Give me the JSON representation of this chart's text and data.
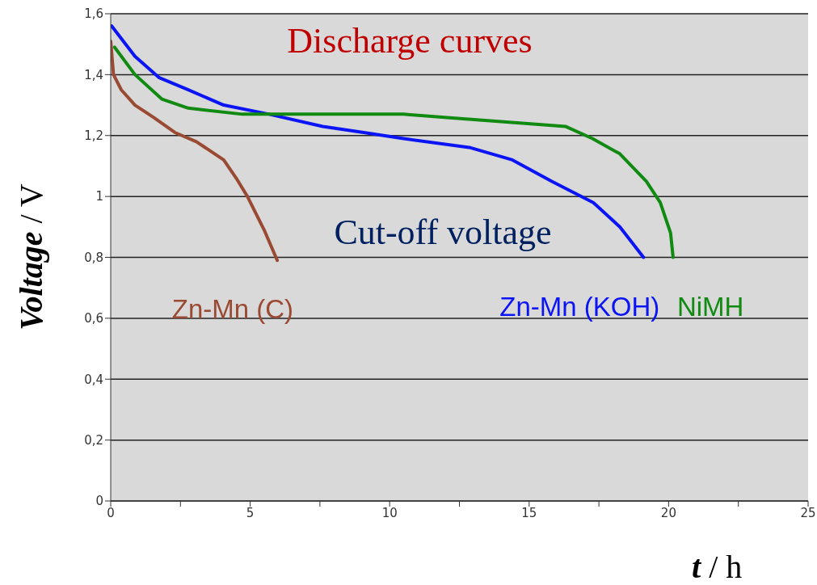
{
  "chart_data": {
    "type": "line",
    "title": "Discharge curves",
    "annotations": [
      "Cut-off voltage"
    ],
    "xlabel": "t / h",
    "ylabel": "Voltage / V",
    "xlim": [
      0,
      25
    ],
    "ylim": [
      0,
      1.6
    ],
    "xticks": [
      0,
      {
        "value": 2.5,
        "label": null
      },
      5,
      {
        "value": 7.5,
        "label": null
      },
      10,
      {
        "value": 12.5,
        "label": null
      },
      15,
      {
        "value": 17.5,
        "label": null
      },
      20,
      {
        "value": 22.5,
        "label": null
      },
      25
    ],
    "yticks": [
      0,
      {
        "value": 0.2,
        "label": "0,2"
      },
      {
        "value": 0.4,
        "label": "0,4"
      },
      {
        "value": 0.6,
        "label": "0,6"
      },
      {
        "value": 0.8,
        "label": "0,8"
      },
      1,
      {
        "value": 1.2,
        "label": "1,2"
      },
      {
        "value": 1.4,
        "label": "1,4"
      },
      {
        "value": 1.6,
        "label": "1,6"
      }
    ],
    "grid": "y",
    "legend": false,
    "marker": "none",
    "line_style": "solid",
    "series": [
      {
        "name": "Zn-Mn (C)",
        "color": "#9a4a32",
        "x": [
          0,
          0.1,
          0.38,
          0.87,
          1.53,
          2.3,
          3.07,
          4.05,
          4.5,
          4.9,
          5.5,
          5.97
        ],
        "values": [
          1.51,
          1.4,
          1.35,
          1.3,
          1.26,
          1.21,
          1.18,
          1.12,
          1.06,
          1.0,
          0.89,
          0.79
        ]
      },
      {
        "name": "Zn-Mn (KOH)",
        "color": "#0a14f5",
        "x": [
          0.03,
          0.87,
          1.74,
          2.78,
          4.05,
          5.68,
          7.6,
          9.07,
          10.5,
          12.9,
          14.4,
          15.8,
          17.3,
          18.25,
          19.1
        ],
        "values": [
          1.56,
          1.46,
          1.39,
          1.35,
          1.3,
          1.27,
          1.23,
          1.21,
          1.19,
          1.16,
          1.12,
          1.05,
          0.98,
          0.9,
          0.8
        ]
      },
      {
        "name": "NiMH",
        "color": "#118a12",
        "x": [
          0.14,
          0.87,
          1.83,
          2.78,
          4.72,
          7.6,
          10.5,
          11.96,
          14.86,
          16.3,
          17.27,
          18.25,
          19.2,
          19.7,
          20.07,
          20.16
        ],
        "values": [
          1.49,
          1.4,
          1.32,
          1.29,
          1.27,
          1.27,
          1.27,
          1.26,
          1.24,
          1.23,
          1.19,
          1.14,
          1.05,
          0.98,
          0.88,
          0.8
        ]
      }
    ]
  }
}
